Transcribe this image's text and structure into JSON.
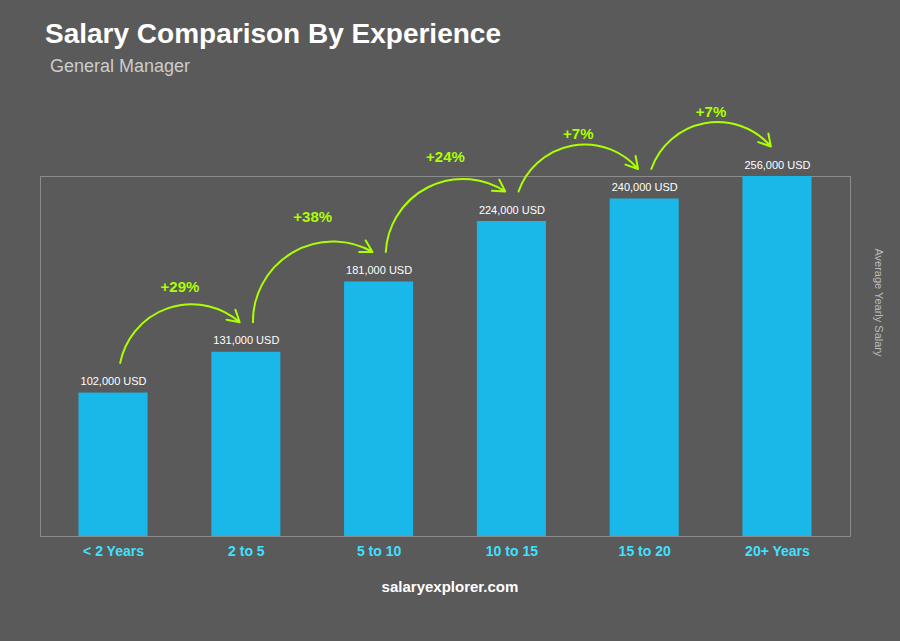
{
  "chart_data": {
    "type": "bar",
    "title": "Salary Comparison By Experience",
    "subtitle": "General Manager",
    "ylabel": "Average Yearly Salary",
    "categories": [
      "< 2 Years",
      "2 to 5",
      "5 to 10",
      "10 to 15",
      "15 to 20",
      "20+ Years"
    ],
    "values": [
      102000,
      131000,
      181000,
      224000,
      240000,
      256000
    ],
    "value_labels": [
      "102,000 USD",
      "131,000 USD",
      "181,000 USD",
      "224,000 USD",
      "240,000 USD",
      "256,000 USD"
    ],
    "data_labels": true,
    "annotations": [
      "+29%",
      "+38%",
      "+24%",
      "+7%",
      "+7%"
    ],
    "caption": "salaryexplorer.com",
    "color": "#1ab8e8",
    "ylim": [
      0,
      256000
    ],
    "tick_labels": "x"
  }
}
